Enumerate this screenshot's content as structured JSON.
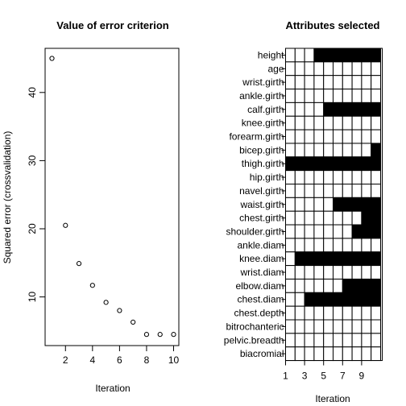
{
  "chart_data": [
    {
      "type": "scatter",
      "title": "Value of error criterion",
      "xlabel": "Iteration",
      "ylabel": "Squared error (crossvalidation)",
      "x": [
        1,
        2,
        3,
        4,
        5,
        6,
        7,
        8,
        9,
        10
      ],
      "y": [
        45.0,
        20.5,
        14.9,
        11.7,
        9.2,
        8.0,
        6.3,
        4.5,
        4.5,
        4.5
      ],
      "xlim": [
        1,
        10
      ],
      "ylim": [
        3,
        47
      ],
      "xticks": [
        "2",
        "4",
        "6",
        "8",
        "10"
      ],
      "yticks": [
        "10",
        "20",
        "30",
        "40"
      ],
      "grid": false
    },
    {
      "type": "heatmap",
      "title": "Attributes selected",
      "xlabel": "Iteration",
      "xticks": [
        "1",
        "3",
        "5",
        "7",
        "9"
      ],
      "columns": 10,
      "legend": "none",
      "rows": [
        {
          "label": "height",
          "selected_from": 4
        },
        {
          "label": "age",
          "selected_from": null
        },
        {
          "label": "wrist.girth",
          "selected_from": null
        },
        {
          "label": "ankle.girth",
          "selected_from": null
        },
        {
          "label": "calf.girth",
          "selected_from": 5
        },
        {
          "label": "knee.girth",
          "selected_from": null
        },
        {
          "label": "forearm.girth",
          "selected_from": null
        },
        {
          "label": "bicep.girth",
          "selected_from": 10
        },
        {
          "label": "thigh.girth",
          "selected_from": 1
        },
        {
          "label": "hip.girth",
          "selected_from": null
        },
        {
          "label": "navel.girth",
          "selected_from": null
        },
        {
          "label": "waist.girth",
          "selected_from": 6
        },
        {
          "label": "chest.girth",
          "selected_from": 9
        },
        {
          "label": "shoulder.girth",
          "selected_from": 8
        },
        {
          "label": "ankle.diam",
          "selected_from": null
        },
        {
          "label": "knee.diam",
          "selected_from": 2
        },
        {
          "label": "wrist.diam",
          "selected_from": null
        },
        {
          "label": "elbow.diam",
          "selected_from": 7
        },
        {
          "label": "chest.diam",
          "selected_from": 3
        },
        {
          "label": "chest.depth",
          "selected_from": null
        },
        {
          "label": "bitrochanteric",
          "selected_from": null
        },
        {
          "label": "pelvic.breadth",
          "selected_from": null
        },
        {
          "label": "biacromial",
          "selected_from": null
        }
      ],
      "colors": {
        "selected": "#000000",
        "unselected": "#ffffff"
      }
    }
  ]
}
